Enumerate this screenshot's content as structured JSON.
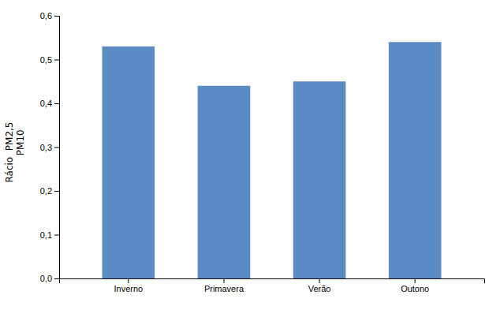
{
  "chart_data": {
    "type": "bar",
    "categories": [
      "Inverno",
      "Primavera",
      "Verão",
      "Outono"
    ],
    "values": [
      0.53,
      0.44,
      0.45,
      0.54
    ],
    "color": "#5b8bc5",
    "ylabel": "Rácio  PM2,5\n         PM10",
    "ylim": [
      0,
      0.6
    ],
    "yticks": [
      {
        "value": 0.0,
        "label": "0,0"
      },
      {
        "value": 0.1,
        "label": "0,1"
      },
      {
        "value": 0.2,
        "label": "0,2"
      },
      {
        "value": 0.3,
        "label": "0,3"
      },
      {
        "value": 0.4,
        "label": "0,4"
      },
      {
        "value": 0.5,
        "label": "0,5"
      },
      {
        "value": 0.6,
        "label": "0,6"
      }
    ],
    "grid": false
  }
}
